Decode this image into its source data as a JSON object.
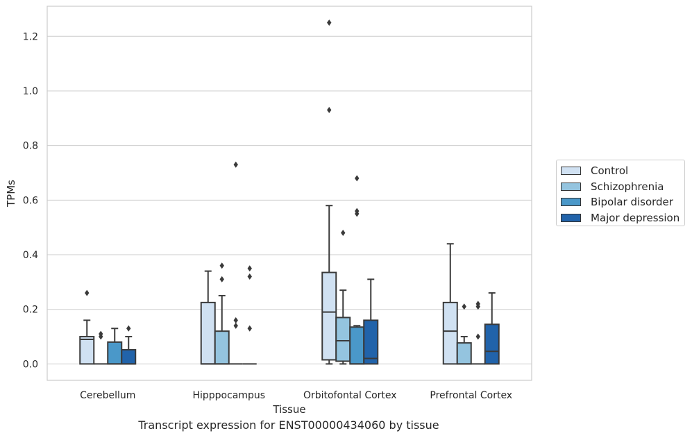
{
  "caption": "Transcript expression for ENST00000434060 by tissue",
  "chart_data": {
    "type": "box",
    "xlabel": "Tissue",
    "ylabel": "TPMs",
    "ylim": [
      -0.06,
      1.31
    ],
    "yticks": [
      "0.0",
      "0.2",
      "0.4",
      "0.6",
      "0.8",
      "1.0",
      "1.2"
    ],
    "grid": "horizontal",
    "legend_position": "right",
    "categories": [
      "Cerebellum",
      "Hipppocampus",
      "Orbitofontal Cortex",
      "Prefrontal Cortex"
    ],
    "series": [
      {
        "name": "Control",
        "color": "#d0e1f2",
        "boxes": [
          {
            "whislo": 0.0,
            "q1": 0.0,
            "med": 0.09,
            "q3": 0.1,
            "whishi": 0.16,
            "fliers": [
              0.26
            ]
          },
          {
            "whislo": 0.0,
            "q1": 0.0,
            "med": 0.0,
            "q3": 0.225,
            "whishi": 0.34,
            "fliers": []
          },
          {
            "whislo": 0.0,
            "q1": 0.015,
            "med": 0.19,
            "q3": 0.335,
            "whishi": 0.58,
            "fliers": [
              0.93,
              1.25
            ]
          },
          {
            "whislo": 0.0,
            "q1": 0.0,
            "med": 0.12,
            "q3": 0.225,
            "whishi": 0.44,
            "fliers": []
          }
        ]
      },
      {
        "name": "Schizophrenia",
        "color": "#94c4df",
        "boxes": [
          {
            "whislo": 0.0,
            "q1": 0.0,
            "med": 0.0,
            "q3": 0.0,
            "whishi": 0.0,
            "fliers": [
              0.1,
              0.11
            ]
          },
          {
            "whislo": 0.0,
            "q1": 0.0,
            "med": 0.0,
            "q3": 0.12,
            "whishi": 0.25,
            "fliers": [
              0.31,
              0.36
            ]
          },
          {
            "whislo": 0.0,
            "q1": 0.01,
            "med": 0.085,
            "q3": 0.17,
            "whishi": 0.27,
            "fliers": [
              0.48
            ]
          },
          {
            "whislo": 0.0,
            "q1": 0.0,
            "med": 0.0,
            "q3": 0.077,
            "whishi": 0.1,
            "fliers": [
              0.21
            ]
          }
        ]
      },
      {
        "name": "Bipolar disorder",
        "color": "#4a98c9",
        "boxes": [
          {
            "whislo": 0.0,
            "q1": 0.0,
            "med": 0.0,
            "q3": 0.08,
            "whishi": 0.13,
            "fliers": []
          },
          {
            "whislo": 0.0,
            "q1": 0.0,
            "med": 0.0,
            "q3": 0.0,
            "whishi": 0.0,
            "fliers": [
              0.14,
              0.16,
              0.73
            ]
          },
          {
            "whislo": 0.0,
            "q1": 0.0,
            "med": 0.0,
            "q3": 0.135,
            "whishi": 0.14,
            "fliers": [
              0.55,
              0.56,
              0.68
            ]
          },
          {
            "whislo": 0.0,
            "q1": 0.0,
            "med": 0.0,
            "q3": 0.0,
            "whishi": 0.0,
            "fliers": [
              0.1,
              0.21,
              0.22
            ]
          }
        ]
      },
      {
        "name": "Major depression",
        "color": "#2163aa",
        "boxes": [
          {
            "whislo": 0.0,
            "q1": 0.0,
            "med": 0.0,
            "q3": 0.052,
            "whishi": 0.1,
            "fliers": [
              0.13
            ]
          },
          {
            "whislo": 0.0,
            "q1": 0.0,
            "med": 0.0,
            "q3": 0.0,
            "whishi": 0.0,
            "fliers": [
              0.13,
              0.32,
              0.35
            ]
          },
          {
            "whislo": 0.0,
            "q1": 0.0,
            "med": 0.02,
            "q3": 0.16,
            "whishi": 0.31,
            "fliers": []
          },
          {
            "whislo": 0.0,
            "q1": 0.0,
            "med": 0.046,
            "q3": 0.145,
            "whishi": 0.26,
            "fliers": []
          }
        ]
      }
    ]
  }
}
